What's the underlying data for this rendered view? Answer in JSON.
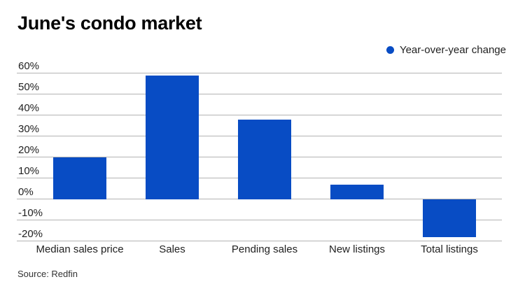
{
  "header": {
    "title": "June's condo market"
  },
  "legend": {
    "label": "Year-over-year change"
  },
  "source": {
    "text": "Source: Redfin"
  },
  "colors": {
    "bar": "#084cc4",
    "gridline": "#b3b3b3",
    "text": "#1f1f1f"
  },
  "chart_data": {
    "type": "bar",
    "title": "June's condo market",
    "categories": [
      "Median sales price",
      "Sales",
      "Pending sales",
      "New listings",
      "Total listings"
    ],
    "values": [
      20,
      59,
      38,
      7,
      -18
    ],
    "series_name": "Year-over-year change",
    "unit": "%",
    "y_ticks": [
      60,
      50,
      40,
      30,
      20,
      10,
      0,
      -10,
      -20
    ],
    "ylim": [
      -20,
      60
    ],
    "grid": "horizontal",
    "legend_position": "top-right",
    "bar_color": "#084cc4",
    "source": "Source: Redfin"
  }
}
